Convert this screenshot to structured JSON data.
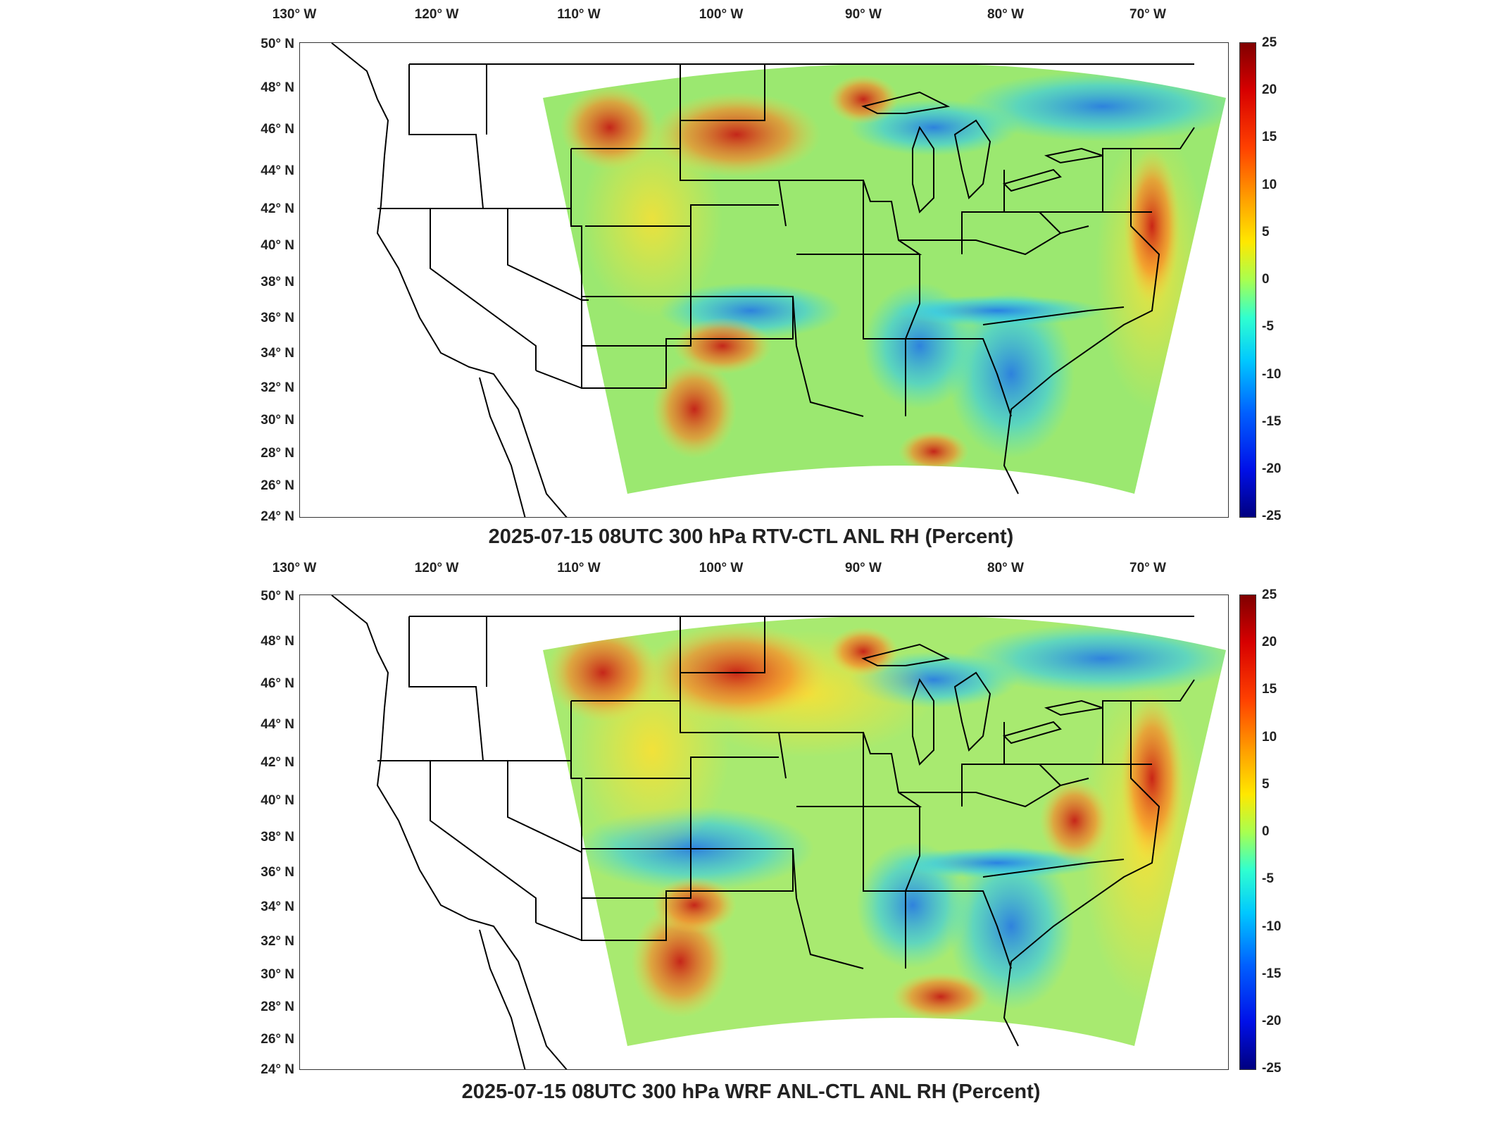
{
  "panels": [
    {
      "title": "2025-07-15 08UTC 300 hPa RTV-CTL ANL RH (Percent)",
      "lon_labels": [
        "130° W",
        "120° W",
        "110° W",
        "100° W",
        "90° W",
        "80° W",
        "70° W"
      ],
      "lat_labels": [
        "50° N",
        "48° N",
        "46° N",
        "44° N",
        "42° N",
        "40° N",
        "38° N",
        "36° N",
        "34° N",
        "32° N",
        "30° N",
        "28° N",
        "26° N",
        "24° N"
      ],
      "colorbar_ticks": [
        "25",
        "20",
        "15",
        "10",
        "5",
        "0",
        "-5",
        "-10",
        "-15",
        "-20",
        "-25"
      ]
    },
    {
      "title": "2025-07-15 08UTC 300 hPa WRF ANL-CTL ANL RH (Percent)",
      "lon_labels": [
        "130° W",
        "120° W",
        "110° W",
        "100° W",
        "90° W",
        "80° W",
        "70° W"
      ],
      "lat_labels": [
        "50° N",
        "48° N",
        "46° N",
        "44° N",
        "42° N",
        "40° N",
        "38° N",
        "36° N",
        "34° N",
        "32° N",
        "30° N",
        "28° N",
        "26° N",
        "24° N"
      ],
      "colorbar_ticks": [
        "25",
        "20",
        "15",
        "10",
        "5",
        "0",
        "-5",
        "-10",
        "-15",
        "-20",
        "-25"
      ]
    }
  ],
  "colors": {
    "field_base": "#9be870",
    "positive_high": "#d21010",
    "positive_mid": "#ff9a20",
    "negative": "#2ec8f0",
    "negative_strong": "#1a6ee8"
  }
}
